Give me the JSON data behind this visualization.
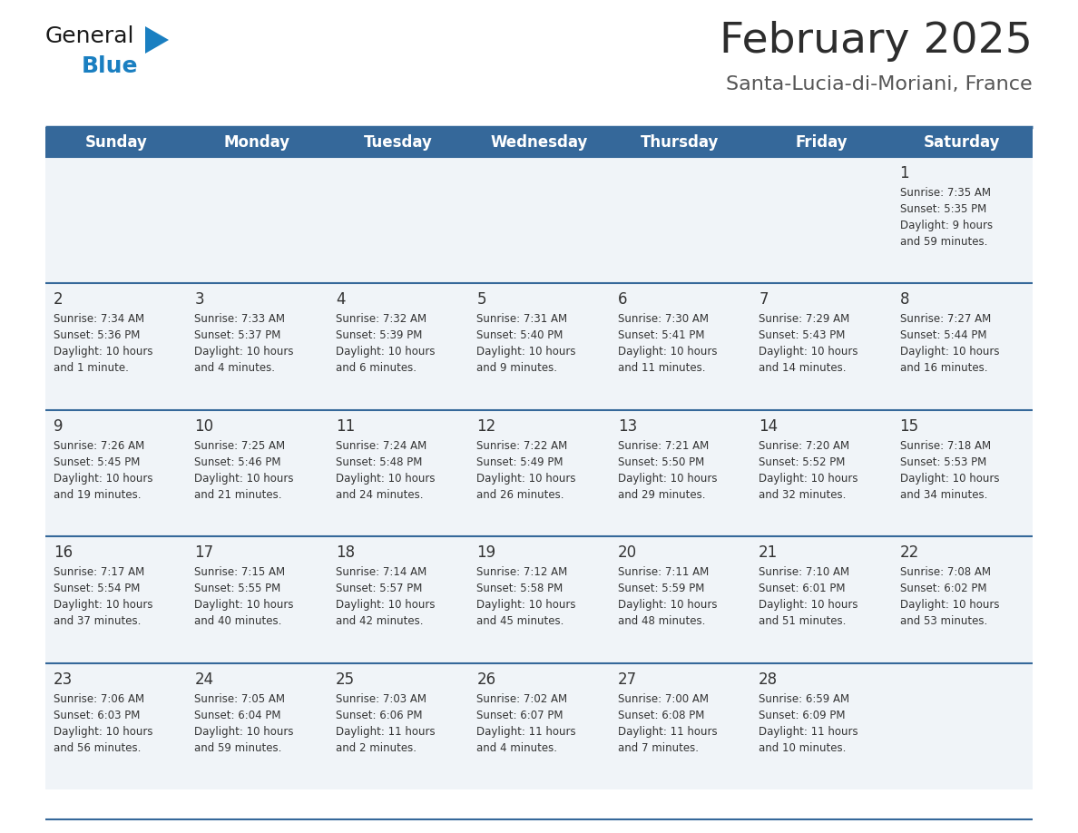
{
  "title": "February 2025",
  "subtitle": "Santa-Lucia-di-Moriani, France",
  "days_of_week": [
    "Sunday",
    "Monday",
    "Tuesday",
    "Wednesday",
    "Thursday",
    "Friday",
    "Saturday"
  ],
  "header_bg": "#35689a",
  "header_text": "#ffffff",
  "row_bg": "#f0f4f8",
  "divider_color": "#35689a",
  "cell_text_color": "#333333",
  "day_num_color": "#333333",
  "title_color": "#2d2d2d",
  "subtitle_color": "#555555",
  "logo_black": "#1a1a1a",
  "logo_blue": "#1a7fc1",
  "triangle_color": "#1a7fc1",
  "calendar_data": [
    [
      {
        "day": null,
        "info": null
      },
      {
        "day": null,
        "info": null
      },
      {
        "day": null,
        "info": null
      },
      {
        "day": null,
        "info": null
      },
      {
        "day": null,
        "info": null
      },
      {
        "day": null,
        "info": null
      },
      {
        "day": 1,
        "info": "Sunrise: 7:35 AM\nSunset: 5:35 PM\nDaylight: 9 hours\nand 59 minutes."
      }
    ],
    [
      {
        "day": 2,
        "info": "Sunrise: 7:34 AM\nSunset: 5:36 PM\nDaylight: 10 hours\nand 1 minute."
      },
      {
        "day": 3,
        "info": "Sunrise: 7:33 AM\nSunset: 5:37 PM\nDaylight: 10 hours\nand 4 minutes."
      },
      {
        "day": 4,
        "info": "Sunrise: 7:32 AM\nSunset: 5:39 PM\nDaylight: 10 hours\nand 6 minutes."
      },
      {
        "day": 5,
        "info": "Sunrise: 7:31 AM\nSunset: 5:40 PM\nDaylight: 10 hours\nand 9 minutes."
      },
      {
        "day": 6,
        "info": "Sunrise: 7:30 AM\nSunset: 5:41 PM\nDaylight: 10 hours\nand 11 minutes."
      },
      {
        "day": 7,
        "info": "Sunrise: 7:29 AM\nSunset: 5:43 PM\nDaylight: 10 hours\nand 14 minutes."
      },
      {
        "day": 8,
        "info": "Sunrise: 7:27 AM\nSunset: 5:44 PM\nDaylight: 10 hours\nand 16 minutes."
      }
    ],
    [
      {
        "day": 9,
        "info": "Sunrise: 7:26 AM\nSunset: 5:45 PM\nDaylight: 10 hours\nand 19 minutes."
      },
      {
        "day": 10,
        "info": "Sunrise: 7:25 AM\nSunset: 5:46 PM\nDaylight: 10 hours\nand 21 minutes."
      },
      {
        "day": 11,
        "info": "Sunrise: 7:24 AM\nSunset: 5:48 PM\nDaylight: 10 hours\nand 24 minutes."
      },
      {
        "day": 12,
        "info": "Sunrise: 7:22 AM\nSunset: 5:49 PM\nDaylight: 10 hours\nand 26 minutes."
      },
      {
        "day": 13,
        "info": "Sunrise: 7:21 AM\nSunset: 5:50 PM\nDaylight: 10 hours\nand 29 minutes."
      },
      {
        "day": 14,
        "info": "Sunrise: 7:20 AM\nSunset: 5:52 PM\nDaylight: 10 hours\nand 32 minutes."
      },
      {
        "day": 15,
        "info": "Sunrise: 7:18 AM\nSunset: 5:53 PM\nDaylight: 10 hours\nand 34 minutes."
      }
    ],
    [
      {
        "day": 16,
        "info": "Sunrise: 7:17 AM\nSunset: 5:54 PM\nDaylight: 10 hours\nand 37 minutes."
      },
      {
        "day": 17,
        "info": "Sunrise: 7:15 AM\nSunset: 5:55 PM\nDaylight: 10 hours\nand 40 minutes."
      },
      {
        "day": 18,
        "info": "Sunrise: 7:14 AM\nSunset: 5:57 PM\nDaylight: 10 hours\nand 42 minutes."
      },
      {
        "day": 19,
        "info": "Sunrise: 7:12 AM\nSunset: 5:58 PM\nDaylight: 10 hours\nand 45 minutes."
      },
      {
        "day": 20,
        "info": "Sunrise: 7:11 AM\nSunset: 5:59 PM\nDaylight: 10 hours\nand 48 minutes."
      },
      {
        "day": 21,
        "info": "Sunrise: 7:10 AM\nSunset: 6:01 PM\nDaylight: 10 hours\nand 51 minutes."
      },
      {
        "day": 22,
        "info": "Sunrise: 7:08 AM\nSunset: 6:02 PM\nDaylight: 10 hours\nand 53 minutes."
      }
    ],
    [
      {
        "day": 23,
        "info": "Sunrise: 7:06 AM\nSunset: 6:03 PM\nDaylight: 10 hours\nand 56 minutes."
      },
      {
        "day": 24,
        "info": "Sunrise: 7:05 AM\nSunset: 6:04 PM\nDaylight: 10 hours\nand 59 minutes."
      },
      {
        "day": 25,
        "info": "Sunrise: 7:03 AM\nSunset: 6:06 PM\nDaylight: 11 hours\nand 2 minutes."
      },
      {
        "day": 26,
        "info": "Sunrise: 7:02 AM\nSunset: 6:07 PM\nDaylight: 11 hours\nand 4 minutes."
      },
      {
        "day": 27,
        "info": "Sunrise: 7:00 AM\nSunset: 6:08 PM\nDaylight: 11 hours\nand 7 minutes."
      },
      {
        "day": 28,
        "info": "Sunrise: 6:59 AM\nSunset: 6:09 PM\nDaylight: 11 hours\nand 10 minutes."
      },
      {
        "day": null,
        "info": null
      }
    ]
  ]
}
